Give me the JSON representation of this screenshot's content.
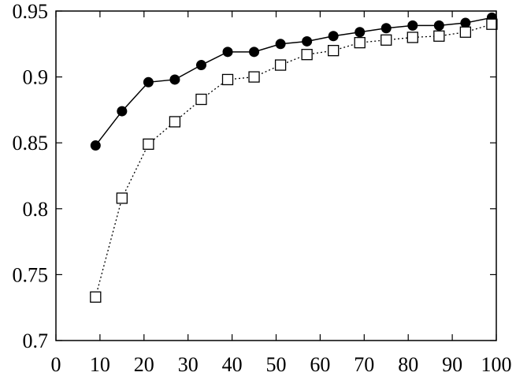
{
  "chart_data": {
    "type": "line",
    "title": "",
    "xlabel": "",
    "ylabel": "",
    "xlim": [
      0,
      100
    ],
    "ylim": [
      0.7,
      0.95
    ],
    "x_ticks": [
      0,
      10,
      20,
      30,
      40,
      50,
      60,
      70,
      80,
      90,
      100
    ],
    "x_tick_labels": [
      "0",
      "10",
      "20",
      "30",
      "40",
      "50",
      "60",
      "70",
      "80",
      "90",
      "100"
    ],
    "y_ticks": [
      0.7,
      0.75,
      0.8,
      0.85,
      0.9,
      0.95
    ],
    "y_tick_labels": [
      "0.7",
      "0.75",
      "0.8",
      "0.85",
      "0.9",
      "0.95"
    ],
    "grid": false,
    "legend": "none",
    "x": [
      9,
      15,
      21,
      27,
      33,
      39,
      45,
      51,
      57,
      63,
      69,
      75,
      81,
      87,
      93,
      99
    ],
    "series": [
      {
        "values": [
          0.848,
          0.874,
          0.896,
          0.898,
          0.909,
          0.919,
          0.919,
          0.925,
          0.927,
          0.931,
          0.934,
          0.937,
          0.939,
          0.939,
          0.941,
          0.945
        ],
        "marker": "filled-circle",
        "line_style": "solid",
        "color": "#000000"
      },
      {
        "values": [
          0.733,
          0.808,
          0.849,
          0.866,
          0.883,
          0.898,
          0.9,
          0.909,
          0.917,
          0.92,
          0.926,
          0.928,
          0.93,
          0.931,
          0.934,
          0.94
        ],
        "marker": "open-square",
        "line_style": "dotted",
        "color": "#000000"
      }
    ]
  }
}
